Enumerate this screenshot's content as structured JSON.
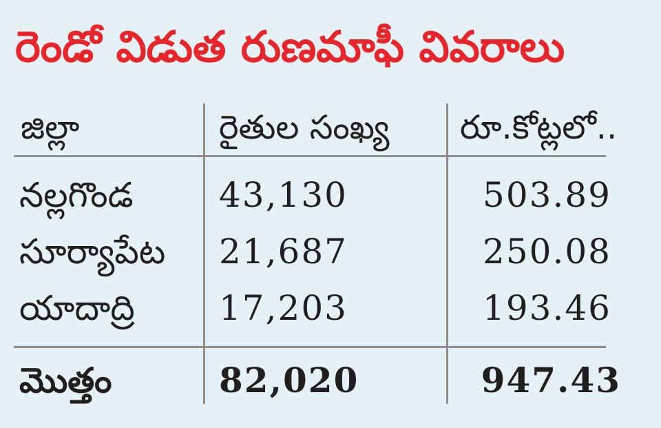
{
  "title": "రెండో విడుత రుణమాఫీ వివరాలు",
  "headers": {
    "district": "జిల్లా",
    "farmers": "రైతుల సంఖ్య",
    "amount": "రూ.కోట్లలో.."
  },
  "rows": [
    {
      "district": "నల్లగొండ",
      "farmers": "43,130",
      "amount": "503.89"
    },
    {
      "district": "సూర్యాపేట",
      "farmers": "21,687",
      "amount": "250.08"
    },
    {
      "district": "యాదాద్రి",
      "farmers": "17,203",
      "amount": "193.46"
    }
  ],
  "total": {
    "label": "మొత్తం",
    "farmers": "82,020",
    "amount": "947.43"
  },
  "colors": {
    "title": "#e8252b",
    "background": "#e6f1f5",
    "rule": "#8f8f8f",
    "text": "#1f1f1f"
  }
}
